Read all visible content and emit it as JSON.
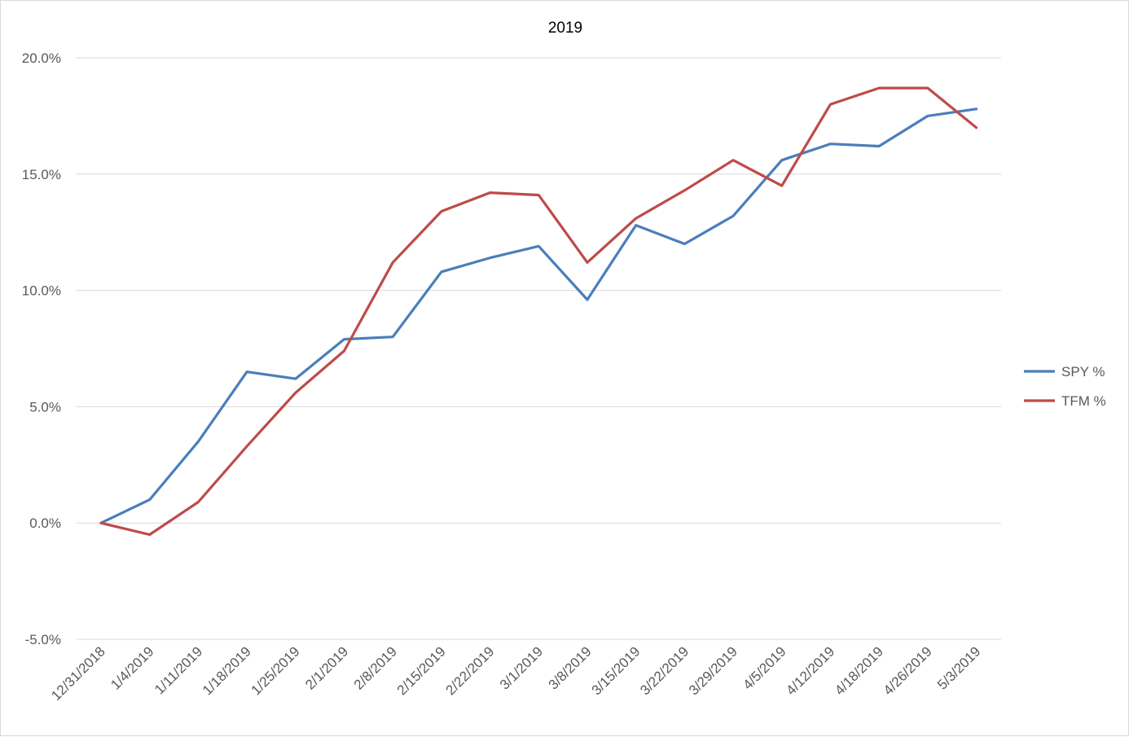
{
  "chart_data": {
    "type": "line",
    "title": "2019",
    "xlabel": "",
    "ylabel": "",
    "categories": [
      "12/31/2018",
      "1/4/2019",
      "1/11/2019",
      "1/18/2019",
      "1/25/2019",
      "2/1/2019",
      "2/8/2019",
      "2/15/2019",
      "2/22/2019",
      "3/1/2019",
      "3/8/2019",
      "3/15/2019",
      "3/22/2019",
      "3/29/2019",
      "4/5/2019",
      "4/12/2019",
      "4/18/2019",
      "4/26/2019",
      "5/3/2019"
    ],
    "y_tick_labels": [
      "20.0%",
      "15.0%",
      "10.0%",
      "5.0%",
      "0.0%",
      "-5.0%"
    ],
    "y_ticks": [
      20,
      15,
      10,
      5,
      0,
      -5
    ],
    "ylim": [
      -5,
      20
    ],
    "grid": true,
    "legend_position": "right",
    "series": [
      {
        "name": "SPY %",
        "color": "#4a7ebb",
        "values": [
          0.0,
          1.0,
          3.5,
          6.5,
          6.2,
          7.9,
          8.0,
          10.8,
          11.4,
          11.9,
          9.6,
          12.8,
          12.0,
          13.2,
          15.6,
          16.3,
          16.2,
          17.5,
          17.8
        ]
      },
      {
        "name": "TFM %",
        "color": "#be4b48",
        "values": [
          0.0,
          -0.5,
          0.9,
          3.3,
          5.6,
          7.4,
          11.2,
          13.4,
          14.2,
          14.1,
          11.2,
          13.1,
          14.3,
          15.6,
          14.5,
          18.0,
          18.7,
          18.7,
          17.0
        ]
      }
    ]
  }
}
